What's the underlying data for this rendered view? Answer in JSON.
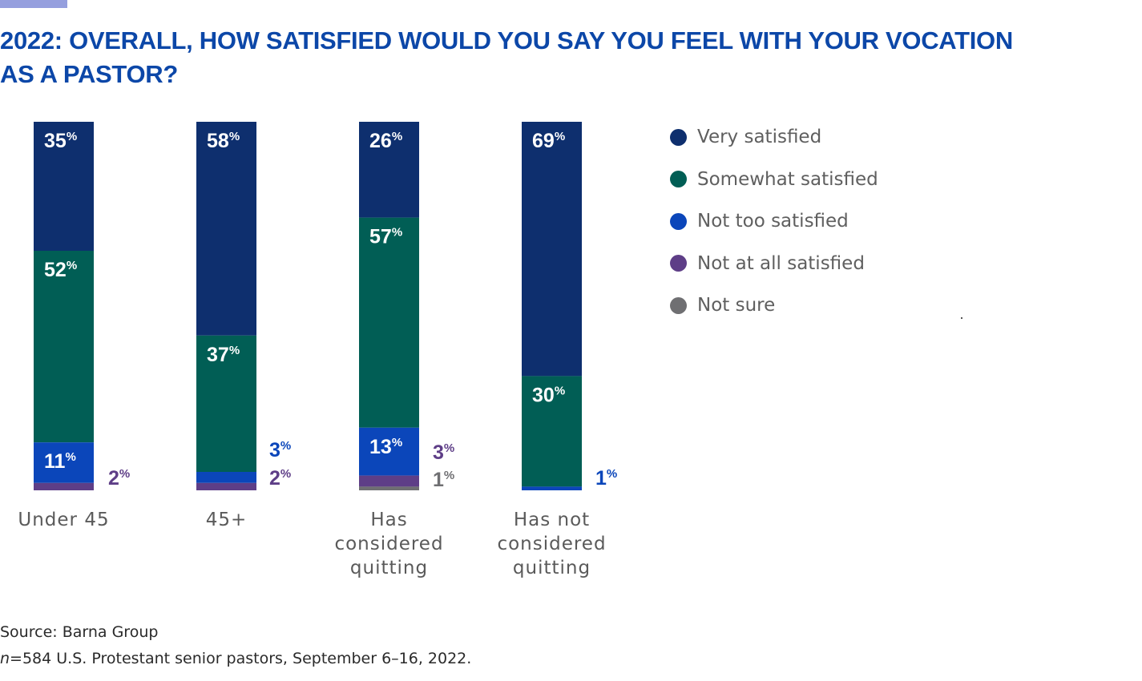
{
  "header": {
    "title": "2022: OVERALL, HOW SATISFIED WOULD YOU SAY YOU FEEL WITH YOUR VOCATION AS A PASTOR?"
  },
  "colors": {
    "very_satisfied": "#0e2f6e",
    "somewhat_satisfied": "#015e55",
    "not_too_satisfied": "#0b46ba",
    "not_at_all_satisfied": "#5e3e87",
    "not_sure": "#6f6f72",
    "title": "#0c47a8",
    "accent": "#959fde"
  },
  "chart_data": {
    "type": "bar",
    "stacked": true,
    "title": "2022: OVERALL, HOW SATISFIED WOULD YOU SAY YOU FEEL WITH YOUR VOCATION AS A PASTOR?",
    "xlabel": "",
    "ylabel": "",
    "ylim": [
      0,
      100
    ],
    "grid": false,
    "legend_position": "right",
    "categories": [
      [
        "Under 45"
      ],
      [
        "45+"
      ],
      [
        "Has",
        "considered",
        "quitting"
      ],
      [
        "Has not",
        "considered",
        "quitting"
      ]
    ],
    "series": [
      {
        "key": "very_satisfied",
        "name": "Very satisfied",
        "values": [
          35,
          58,
          26,
          69
        ]
      },
      {
        "key": "somewhat_satisfied",
        "name": "Somewhat satisfied",
        "values": [
          52,
          37,
          57,
          30
        ]
      },
      {
        "key": "not_too_satisfied",
        "name": "Not too satisfied",
        "values": [
          11,
          3,
          13,
          1
        ]
      },
      {
        "key": "not_at_all_satisfied",
        "name": "Not at all satisfied",
        "values": [
          2,
          2,
          3,
          0
        ]
      },
      {
        "key": "not_sure",
        "name": "Not sure",
        "values": [
          0,
          0,
          1,
          0
        ]
      }
    ],
    "value_suffix": "%"
  },
  "legend": [
    {
      "label": "Very satisfied",
      "color_key": "very_satisfied"
    },
    {
      "label": "Somewhat satisfied",
      "color_key": "somewhat_satisfied"
    },
    {
      "label": "Not too satisfied",
      "color_key": "not_too_satisfied"
    },
    {
      "label": "Not at all satisfied",
      "color_key": "not_at_all_satisfied"
    },
    {
      "label": "Not sure",
      "color_key": "not_sure"
    }
  ],
  "footer": {
    "source": "Source: Barna Group",
    "sample_n": "n",
    "sample_text": "=584 U.S. Protestant senior pastors, September 6–16, 2022."
  }
}
